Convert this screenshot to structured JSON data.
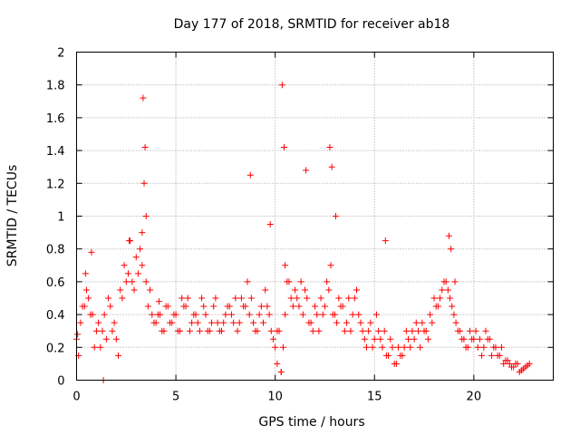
{
  "chart_data": {
    "type": "scatter",
    "title": "Day 177 of 2018, SRMTID for receiver ab18",
    "xlabel": "GPS time / hours",
    "ylabel": "SRMTID / TECUs",
    "xlim": [
      0,
      24
    ],
    "ylim": [
      0,
      2
    ],
    "xticks": [
      0,
      5,
      10,
      15,
      20
    ],
    "yticks": [
      0,
      0.2,
      0.4,
      0.6,
      0.8,
      1,
      1.2,
      1.4,
      1.6,
      1.8,
      2
    ],
    "xtick_labels": [
      "0",
      "5",
      "10",
      "15",
      "20"
    ],
    "ytick_labels": [
      "0",
      "0.2",
      "0.4",
      "0.6",
      "0.8",
      "1",
      "1.2",
      "1.4",
      "1.6",
      "1.8",
      "2"
    ],
    "grid": true,
    "marker": "plus",
    "color": "#ff0000",
    "series": [
      {
        "name": "SRMTID",
        "x": [
          0.0,
          0.2,
          0.4,
          0.6,
          0.8,
          1.0,
          1.2,
          1.4,
          1.6,
          1.8,
          2.0,
          2.2,
          2.4,
          2.6,
          2.8,
          3.0,
          3.2,
          3.3,
          3.4,
          3.5,
          3.6,
          3.8,
          4.0,
          4.2,
          4.4,
          4.6,
          4.8,
          5.0,
          5.2,
          5.4,
          5.6,
          5.8,
          6.0,
          6.2,
          6.4,
          6.6,
          6.8,
          7.0,
          7.2,
          7.4,
          7.6,
          7.8,
          8.0,
          8.2,
          8.4,
          8.6,
          8.8,
          9.0,
          9.2,
          9.4,
          9.6,
          9.8,
          10.0,
          10.1,
          10.2,
          10.3,
          10.4,
          10.5,
          10.6,
          10.8,
          11.0,
          11.2,
          11.4,
          11.6,
          11.8,
          12.0,
          12.2,
          12.4,
          12.6,
          12.8,
          13.0,
          13.2,
          13.4,
          13.6,
          13.8,
          14.0,
          14.2,
          14.4,
          14.6,
          14.8,
          15.0,
          15.2,
          15.4,
          15.6,
          15.8,
          16.0,
          16.2,
          16.4,
          16.6,
          16.8,
          17.0,
          17.2,
          17.4,
          17.6,
          17.8,
          18.0,
          18.2,
          18.4,
          18.6,
          18.8,
          19.0,
          19.2,
          19.4,
          19.6,
          19.8,
          20.0,
          20.2,
          20.4,
          20.6,
          20.8,
          21.0,
          21.2,
          21.4,
          21.6,
          21.8,
          22.0,
          22.2,
          22.4,
          22.6,
          22.8,
          0.1,
          0.3,
          0.5,
          0.7,
          0.9,
          1.1,
          1.3,
          1.5,
          1.7,
          1.9,
          2.1,
          2.3,
          2.5,
          2.7,
          2.9,
          3.1,
          3.3,
          3.5,
          3.7,
          3.9,
          4.1,
          4.3,
          4.5,
          4.7,
          4.9,
          5.1,
          5.3,
          5.5,
          5.7,
          5.9,
          6.1,
          6.3,
          6.5,
          6.7,
          6.9,
          7.1,
          7.3,
          7.5,
          7.7,
          7.9,
          8.1,
          8.3,
          8.5,
          8.7,
          8.9,
          9.1,
          9.3,
          9.5,
          9.7,
          9.9,
          10.1,
          10.3,
          10.5,
          10.7,
          10.9,
          11.1,
          11.3,
          11.5,
          11.7,
          11.9,
          12.1,
          12.3,
          12.5,
          12.7,
          12.9,
          13.1,
          13.3,
          13.5,
          13.7,
          13.9,
          14.1,
          14.3,
          14.5,
          14.7,
          14.9,
          15.1,
          15.3,
          15.5,
          15.7,
          15.9,
          16.1,
          16.3,
          16.5,
          16.7,
          16.9,
          17.1,
          17.3,
          17.5,
          17.7,
          17.9,
          18.1,
          18.3,
          18.5,
          18.7,
          18.9,
          19.1,
          19.3,
          19.5,
          19.7,
          19.9,
          20.1,
          20.3,
          20.5,
          20.7,
          20.9,
          21.1,
          21.3,
          21.5,
          21.7,
          21.9,
          22.1,
          22.3,
          22.5,
          22.7,
          0.05,
          0.45,
          0.75,
          1.35,
          2.65,
          3.35,
          3.45,
          4.15,
          8.75,
          9.75,
          10.35,
          10.45,
          11.55,
          12.75,
          12.85,
          13.05,
          15.55,
          18.75,
          18.85,
          19.05
        ],
        "y": [
          0.25,
          0.35,
          0.45,
          0.5,
          0.4,
          0.3,
          0.2,
          0.4,
          0.5,
          0.3,
          0.25,
          0.55,
          0.7,
          0.65,
          0.6,
          0.75,
          0.8,
          0.9,
          1.2,
          0.6,
          0.45,
          0.4,
          0.35,
          0.4,
          0.3,
          0.45,
          0.35,
          0.4,
          0.3,
          0.45,
          0.5,
          0.35,
          0.4,
          0.3,
          0.45,
          0.3,
          0.35,
          0.5,
          0.3,
          0.35,
          0.45,
          0.4,
          0.5,
          0.35,
          0.45,
          0.6,
          0.5,
          0.3,
          0.4,
          0.35,
          0.45,
          0.3,
          0.2,
          0.1,
          0.3,
          0.05,
          0.2,
          0.7,
          0.6,
          0.5,
          0.55,
          0.45,
          0.4,
          0.5,
          0.35,
          0.45,
          0.3,
          0.4,
          0.6,
          0.7,
          0.4,
          0.5,
          0.45,
          0.35,
          0.3,
          0.5,
          0.4,
          0.3,
          0.2,
          0.35,
          0.25,
          0.3,
          0.2,
          0.15,
          0.25,
          0.1,
          0.2,
          0.15,
          0.3,
          0.2,
          0.25,
          0.3,
          0.35,
          0.3,
          0.4,
          0.5,
          0.45,
          0.55,
          0.6,
          0.5,
          0.4,
          0.3,
          0.25,
          0.2,
          0.3,
          0.25,
          0.2,
          0.15,
          0.3,
          0.25,
          0.2,
          0.15,
          0.2,
          0.12,
          0.1,
          0.08,
          0.1,
          0.06,
          0.08,
          0.1,
          0.15,
          0.45,
          0.55,
          0.4,
          0.2,
          0.35,
          0.3,
          0.25,
          0.45,
          0.35,
          0.15,
          0.5,
          0.6,
          0.85,
          0.55,
          0.65,
          0.7,
          1.0,
          0.55,
          0.35,
          0.4,
          0.3,
          0.45,
          0.35,
          0.4,
          0.3,
          0.5,
          0.45,
          0.3,
          0.4,
          0.35,
          0.5,
          0.4,
          0.3,
          0.45,
          0.35,
          0.3,
          0.4,
          0.45,
          0.35,
          0.3,
          0.5,
          0.45,
          0.4,
          0.35,
          0.3,
          0.45,
          0.55,
          0.4,
          0.25,
          0.3,
          0.05,
          0.4,
          0.6,
          0.45,
          0.5,
          0.6,
          0.55,
          0.35,
          0.3,
          0.4,
          0.5,
          0.45,
          0.55,
          0.4,
          0.35,
          0.45,
          0.3,
          0.5,
          0.4,
          0.55,
          0.35,
          0.25,
          0.3,
          0.2,
          0.4,
          0.25,
          0.3,
          0.15,
          0.2,
          0.1,
          0.15,
          0.2,
          0.25,
          0.3,
          0.35,
          0.2,
          0.3,
          0.25,
          0.35,
          0.45,
          0.5,
          0.6,
          0.55,
          0.45,
          0.35,
          0.3,
          0.25,
          0.2,
          0.25,
          0.3,
          0.25,
          0.2,
          0.25,
          0.15,
          0.2,
          0.15,
          0.1,
          0.12,
          0.08,
          0.1,
          0.05,
          0.07,
          0.09,
          0.28,
          0.65,
          0.78,
          0.0,
          0.85,
          1.72,
          1.42,
          0.48,
          1.25,
          0.95,
          1.8,
          1.42,
          1.28,
          1.42,
          1.3,
          1.0,
          0.85,
          0.88,
          0.8,
          0.6
        ]
      }
    ]
  }
}
